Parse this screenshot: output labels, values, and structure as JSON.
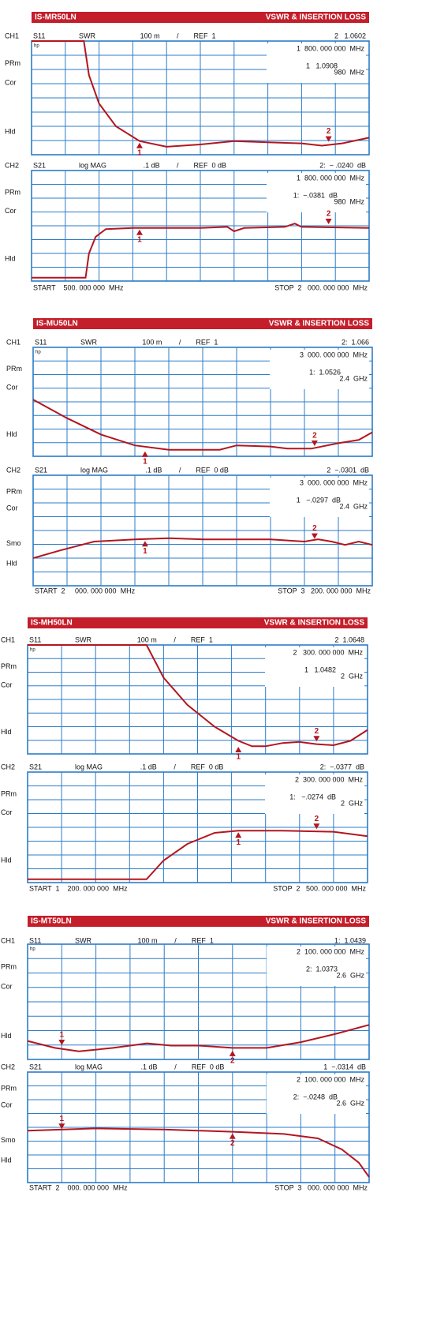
{
  "panels": [
    {
      "title": "IS-MR50LN",
      "subtitle": "VSWR & INSERTION LOSS",
      "start": "START    500. 000 000  MHz",
      "stop": "STOP  2   000. 000 000  MHz",
      "channels": [
        {
          "channel": "CH1",
          "param": "S11",
          "format": "SWR",
          "scale": "100 m",
          "ref": "REF  1",
          "readout": "2   1.0602",
          "marker_freq": "1  800. 000 000  MHz",
          "marker_value": "1   1.0908",
          "marker_value_freq": "980  MHz",
          "side_labels": [
            "PRm",
            "Cor",
            "Hld"
          ],
          "corner": "hp",
          "markers": [
            "1",
            "2"
          ]
        },
        {
          "channel": "CH2",
          "param": "S21",
          "format": "log MAG",
          "scale": ".1 dB",
          "ref": "REF  0 dB",
          "readout": "2:  − .0240  dB",
          "marker_freq": "1  800. 000 000  MHz",
          "marker_value": "1:  −.0381  dB",
          "marker_value_freq": "980  MHz",
          "side_labels": [
            "PRm",
            "Cor",
            "Hld"
          ],
          "markers": [
            "1",
            "2"
          ]
        }
      ]
    },
    {
      "title": "IS-MU50LN",
      "subtitle": "VSWR & INSERTION LOSS",
      "start": "START  2     000. 000 000  MHz",
      "stop": "STOP  3   200. 000 000  MHz",
      "channels": [
        {
          "channel": "CH1",
          "param": "S11",
          "format": "SWR",
          "scale": "100 m",
          "ref": "REF  1",
          "readout": "2:  1.066",
          "marker_freq": "3  000. 000 000  MHz",
          "marker_value": "1:  1.0526",
          "marker_value_freq": "2.4  GHz",
          "side_labels": [
            "PRm",
            "Cor",
            "Hld"
          ],
          "corner": "hp",
          "markers": [
            "1",
            "2"
          ]
        },
        {
          "channel": "CH2",
          "param": "S21",
          "format": "log MAG",
          "scale": ".1 dB",
          "ref": "REF  0 dB",
          "readout": "2  −.0301  dB",
          "marker_freq": "3  000. 000 000  MHz",
          "marker_value": "1   −.0297  dB",
          "marker_value_freq": "2.4  GHz",
          "side_labels": [
            "PRm",
            "Cor",
            "Smo",
            "Hld"
          ],
          "markers": [
            "1",
            "2"
          ]
        }
      ]
    },
    {
      "title": "IS-MH50LN",
      "subtitle": "VSWR & INSERTION LOSS",
      "start": "START  1    200. 000 000  MHz",
      "stop": "STOP  2   500. 000 000  MHz",
      "channels": [
        {
          "channel": "CH1",
          "param": "S11",
          "format": "SWR",
          "scale": "100 m",
          "ref": "REF  1",
          "readout": "2  1.0648",
          "marker_freq": "2   300. 000 000  MHz",
          "marker_value": "1   1.0482",
          "marker_value_freq": "2  GHz",
          "side_labels": [
            "PRm",
            "Cor",
            "Hld"
          ],
          "corner": "hp",
          "markers": [
            "1",
            "2"
          ]
        },
        {
          "channel": "CH2",
          "param": "S21",
          "format": "log MAG",
          "scale": ".1 dB",
          "ref": "REF  0 dB",
          "readout": "2:  −.0377  dB",
          "marker_freq": "2  300. 000 000  MHz",
          "marker_value": "1:   −.0274  dB",
          "marker_value_freq": "2  GHz",
          "side_labels": [
            "PRm",
            "Cor",
            "Hld"
          ],
          "markers": [
            "1",
            "2"
          ]
        }
      ]
    },
    {
      "title": "IS-MT50LN",
      "subtitle": "VSWR & INSERTION LOSS",
      "start": "START  2    000. 000 000  MHz",
      "stop": "STOP  3   000. 000 000  MHz",
      "channels": [
        {
          "channel": "CH1",
          "param": "S11",
          "format": "SWR",
          "scale": "100 m",
          "ref": "REF  1",
          "readout": "1:  1.0439",
          "marker_freq": "2  100. 000 000  MHz",
          "marker_value": "2:  1.0373",
          "marker_value_freq": "2.6  GHz",
          "side_labels": [
            "PRm",
            "Cor",
            "Hld"
          ],
          "corner": "hp",
          "markers": [
            "1",
            "2"
          ]
        },
        {
          "channel": "CH2",
          "param": "S21",
          "format": "log MAG",
          "scale": ".1 dB",
          "ref": "REF  0 dB",
          "readout": "1  −.0314  dB",
          "marker_freq": "2  100. 000 000  MHz",
          "marker_value": "2:  −.0248  dB",
          "marker_value_freq": "2.6  GHz",
          "side_labels": [
            "PRm",
            "Cor",
            "Smo",
            "Hld"
          ],
          "markers": [
            "1",
            "2"
          ]
        }
      ]
    }
  ]
}
